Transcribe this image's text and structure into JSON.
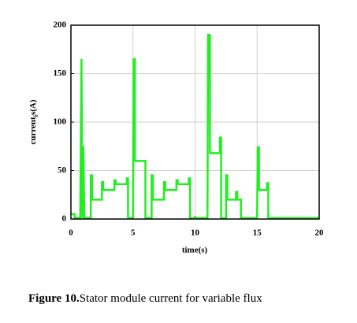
{
  "chart_data": {
    "type": "line",
    "xlabel": "time(s)",
    "ylabel": "current",
    "ylabel_sub": "i",
    "ylabel_suffix": "s(A)",
    "caption_label": "Figure 10.",
    "caption_text": "Stator module current for variable flux",
    "xlim": [
      0,
      20
    ],
    "xticks": [
      0,
      5,
      10,
      15,
      20
    ],
    "ylim": [
      0,
      200
    ],
    "yticks": [
      0,
      50,
      100,
      150,
      200
    ],
    "grid": true,
    "series": [
      {
        "name": "current",
        "color": "#22ee22",
        "x": [
          0,
          0.3,
          0.3,
          0.75,
          0.85,
          0.92,
          1.0,
          1.08,
          1.6,
          1.6,
          1.7,
          1.7,
          2.5,
          2.5,
          2.6,
          2.6,
          3.5,
          3.5,
          3.6,
          3.6,
          4.5,
          4.5,
          4.6,
          4.6,
          5.0,
          5.05,
          5.15,
          5.15,
          6.0,
          6.0,
          6.5,
          6.5,
          6.6,
          6.6,
          7.5,
          7.5,
          7.6,
          7.6,
          8.5,
          8.5,
          8.6,
          8.6,
          9.5,
          9.5,
          9.6,
          9.6,
          11.0,
          11.05,
          11.2,
          11.2,
          12.0,
          12.0,
          12.1,
          12.1,
          12.5,
          12.5,
          12.6,
          12.6,
          13.3,
          13.3,
          13.4,
          13.4,
          13.7,
          13.7,
          15.0,
          15.05,
          15.15,
          15.15,
          15.8,
          15.8,
          15.9,
          15.9,
          20
        ],
        "values": [
          5,
          5,
          1,
          1,
          165,
          1,
          75,
          1,
          1,
          45,
          45,
          20,
          20,
          38,
          38,
          30,
          30,
          40,
          40,
          36,
          36,
          42,
          42,
          1,
          1,
          165,
          165,
          60,
          60,
          1,
          1,
          45,
          45,
          20,
          20,
          38,
          38,
          30,
          30,
          40,
          40,
          36,
          36,
          42,
          42,
          1,
          1,
          190,
          190,
          68,
          68,
          84,
          84,
          1,
          1,
          45,
          45,
          20,
          20,
          28,
          28,
          20,
          20,
          1,
          1,
          74,
          74,
          30,
          30,
          37,
          37,
          1,
          1
        ]
      }
    ]
  }
}
